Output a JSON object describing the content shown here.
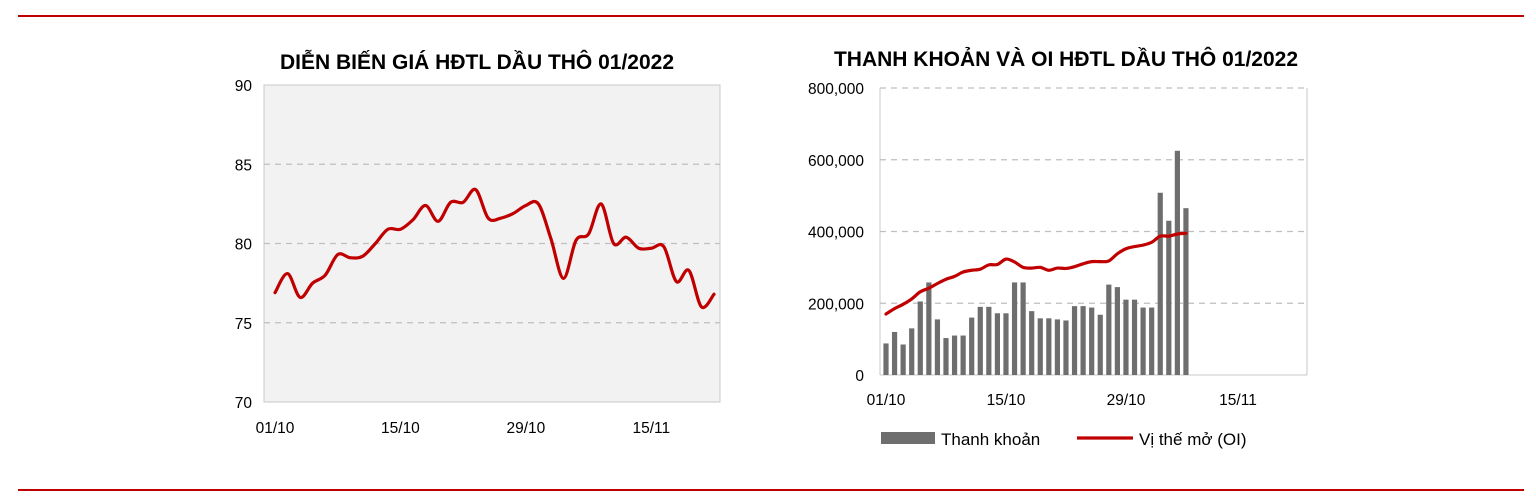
{
  "chart_data": [
    {
      "type": "line",
      "title": "DIỄN BIẾN GIÁ HĐTL DẦU THÔ 01/2022",
      "xlabel": "",
      "ylabel": "",
      "ylim": [
        70,
        90
      ],
      "yticks": [
        "90",
        "85",
        "80",
        "75",
        "70"
      ],
      "xticks": [
        "01/10",
        "15/10",
        "29/10",
        "15/11"
      ],
      "grid": true,
      "line_color": "#c00000",
      "series": [
        {
          "values": [
            76.9,
            78.1,
            76.6,
            77.5,
            78.0,
            79.3,
            79.1,
            79.2,
            80.0,
            80.9,
            80.9,
            81.5,
            82.4,
            81.4,
            82.6,
            82.6,
            83.4,
            81.6,
            81.6,
            81.9,
            82.4,
            82.5,
            80.3,
            77.8,
            80.2,
            80.6,
            82.5,
            80.0,
            80.4,
            79.7,
            79.7,
            79.8,
            77.6,
            78.3,
            76.0,
            76.8
          ]
        }
      ]
    },
    {
      "type": "bar",
      "title": "THANH KHOẢN VÀ OI HĐTL DẦU THÔ 01/2022",
      "ylim": [
        0,
        800000
      ],
      "yticks": [
        "800,000",
        "600,000",
        "400,000",
        "200,000",
        "0"
      ],
      "xticks": [
        "01/10",
        "15/10",
        "29/10",
        "15/11"
      ],
      "grid": true,
      "legend_position": "bottom",
      "series": [
        {
          "name": "Thanh khoản",
          "type": "bar",
          "color": "#6e6e6e",
          "values": [
            88000,
            120000,
            85000,
            130000,
            205000,
            258000,
            155000,
            103000,
            110000,
            110000,
            160000,
            190000,
            190000,
            172000,
            172000,
            258000,
            258000,
            178000,
            158000,
            158000,
            155000,
            152000,
            192000,
            192000,
            188000,
            168000,
            252000,
            245000,
            210000,
            210000,
            188000,
            188000,
            508000,
            430000,
            625000,
            465000
          ]
        },
        {
          "name": "Vị thế mở (OI)",
          "type": "line",
          "color": "#c00000",
          "values": [
            170000,
            185000,
            197000,
            212000,
            232000,
            242000,
            255000,
            267000,
            275000,
            287000,
            292000,
            295000,
            307000,
            308000,
            323000,
            315000,
            300000,
            298000,
            300000,
            292000,
            298000,
            297000,
            302000,
            310000,
            316000,
            316000,
            318000,
            338000,
            352000,
            358000,
            362000,
            370000,
            387000,
            387000,
            393000,
            395000
          ]
        }
      ]
    }
  ]
}
